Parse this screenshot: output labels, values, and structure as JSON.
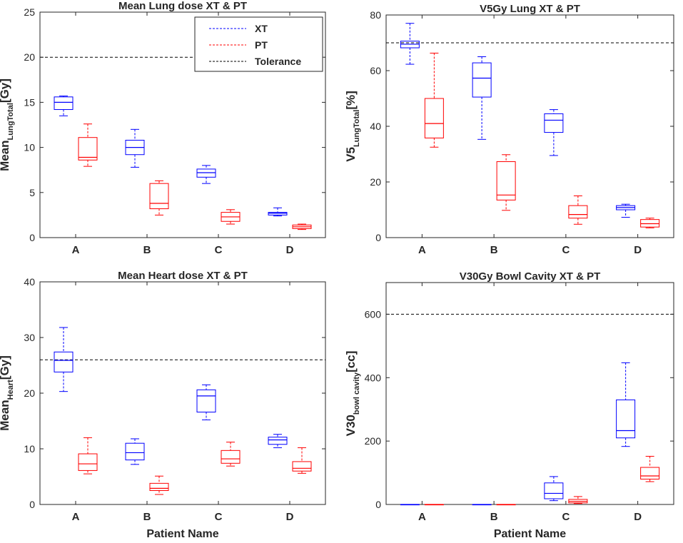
{
  "figure": {
    "xlabel": "Patient Name",
    "legend": {
      "placement": "top-right of first panel",
      "entries": [
        "XT",
        "PT",
        "Tolerance"
      ]
    }
  },
  "colors": {
    "XT": "#0000ff",
    "PT": "#ff0000",
    "Tolerance": "#000000"
  },
  "chart_data": [
    {
      "type": "box",
      "title": "Mean Lung dose XT & PT",
      "ylabel_main": "Mean",
      "ylabel_sub": "LungTotal",
      "ylabel_unit": "[Gy]",
      "xlabel": "",
      "categories": [
        "A",
        "B",
        "C",
        "D"
      ],
      "ylim": [
        0,
        25
      ],
      "yticks": [
        0,
        5,
        10,
        15,
        20,
        25
      ],
      "tolerance": 20,
      "series": [
        {
          "name": "XT",
          "boxes": [
            {
              "min": 13.5,
              "q1": 14.2,
              "median": 15.0,
              "q3": 15.6,
              "max": 15.7
            },
            {
              "min": 7.8,
              "q1": 9.2,
              "median": 10.0,
              "q3": 10.8,
              "max": 12.0
            },
            {
              "min": 6.0,
              "q1": 6.7,
              "median": 7.2,
              "q3": 7.6,
              "max": 8.0
            },
            {
              "min": 2.4,
              "q1": 2.5,
              "median": 2.7,
              "q3": 2.8,
              "max": 3.3
            }
          ]
        },
        {
          "name": "PT",
          "boxes": [
            {
              "min": 7.9,
              "q1": 8.6,
              "median": 8.9,
              "q3": 11.1,
              "max": 12.6
            },
            {
              "min": 2.5,
              "q1": 3.2,
              "median": 3.8,
              "q3": 6.0,
              "max": 6.3
            },
            {
              "min": 1.5,
              "q1": 1.8,
              "median": 2.3,
              "q3": 2.8,
              "max": 3.1
            },
            {
              "min": 0.9,
              "q1": 1.0,
              "median": 1.2,
              "q3": 1.4,
              "max": 1.5
            }
          ]
        }
      ]
    },
    {
      "type": "box",
      "title": "V5Gy Lung XT & PT",
      "ylabel_main": "V5",
      "ylabel_sub": "LungTotal",
      "ylabel_unit": "[%]",
      "xlabel": "",
      "categories": [
        "A",
        "B",
        "C",
        "D"
      ],
      "ylim": [
        0,
        80
      ],
      "yticks": [
        0,
        20,
        40,
        60,
        80
      ],
      "tolerance": 70,
      "series": [
        {
          "name": "XT",
          "boxes": [
            {
              "min": 62.3,
              "q1": 68.2,
              "median": 69.5,
              "q3": 70.6,
              "max": 77.0
            },
            {
              "min": 35.3,
              "q1": 50.5,
              "median": 57.3,
              "q3": 62.8,
              "max": 65.0
            },
            {
              "min": 29.5,
              "q1": 37.8,
              "median": 42.2,
              "q3": 44.5,
              "max": 46.0
            },
            {
              "min": 7.3,
              "q1": 10.0,
              "median": 10.8,
              "q3": 11.5,
              "max": 12.0
            }
          ]
        },
        {
          "name": "PT",
          "boxes": [
            {
              "min": 32.5,
              "q1": 35.8,
              "median": 41.0,
              "q3": 50.0,
              "max": 66.3
            },
            {
              "min": 9.8,
              "q1": 13.5,
              "median": 15.3,
              "q3": 27.3,
              "max": 29.8
            },
            {
              "min": 4.8,
              "q1": 7.0,
              "median": 8.3,
              "q3": 11.5,
              "max": 15.0
            },
            {
              "min": 3.5,
              "q1": 3.8,
              "median": 5.0,
              "q3": 6.5,
              "max": 7.0
            }
          ]
        }
      ]
    },
    {
      "type": "box",
      "title": "Mean Heart dose XT & PT",
      "ylabel_main": "Mean",
      "ylabel_sub": "Heart",
      "ylabel_unit": "[Gy]",
      "xlabel": "Patient Name",
      "categories": [
        "A",
        "B",
        "C",
        "D"
      ],
      "ylim": [
        0,
        40
      ],
      "yticks": [
        0,
        10,
        20,
        30,
        40
      ],
      "tolerance": 26,
      "series": [
        {
          "name": "XT",
          "boxes": [
            {
              "min": 20.3,
              "q1": 23.8,
              "median": 25.9,
              "q3": 27.4,
              "max": 31.8
            },
            {
              "min": 7.2,
              "q1": 8.0,
              "median": 9.3,
              "q3": 11.0,
              "max": 11.8
            },
            {
              "min": 15.2,
              "q1": 16.6,
              "median": 19.5,
              "q3": 20.6,
              "max": 21.5
            },
            {
              "min": 10.2,
              "q1": 10.8,
              "median": 11.6,
              "q3": 12.1,
              "max": 12.6
            }
          ]
        },
        {
          "name": "PT",
          "boxes": [
            {
              "min": 5.5,
              "q1": 6.1,
              "median": 7.3,
              "q3": 9.1,
              "max": 12.0
            },
            {
              "min": 1.8,
              "q1": 2.5,
              "median": 2.9,
              "q3": 3.8,
              "max": 5.1
            },
            {
              "min": 6.9,
              "q1": 7.4,
              "median": 8.2,
              "q3": 9.7,
              "max": 11.2
            },
            {
              "min": 5.6,
              "q1": 6.0,
              "median": 6.5,
              "q3": 7.7,
              "max": 10.2
            }
          ]
        }
      ]
    },
    {
      "type": "box",
      "title": "V30Gy Bowl Cavity XT & PT",
      "ylabel_main": "V30",
      "ylabel_sub": "bowl cavity",
      "ylabel_unit": "[cc]",
      "xlabel": "Patient Name",
      "categories": [
        "A",
        "B",
        "C",
        "D"
      ],
      "ylim": [
        0,
        700
      ],
      "yticks": [
        0,
        200,
        400,
        600
      ],
      "tolerance": 600,
      "series": [
        {
          "name": "XT",
          "boxes": [
            {
              "min": 0,
              "q1": 0,
              "median": 0,
              "q3": 0,
              "max": 0
            },
            {
              "min": 0,
              "q1": 0,
              "median": 0,
              "q3": 0,
              "max": 0
            },
            {
              "min": 12,
              "q1": 18,
              "median": 35,
              "q3": 68,
              "max": 88
            },
            {
              "min": 183,
              "q1": 210,
              "median": 233,
              "q3": 330,
              "max": 447
            }
          ]
        },
        {
          "name": "PT",
          "boxes": [
            {
              "min": 0,
              "q1": 0,
              "median": 0,
              "q3": 0,
              "max": 0
            },
            {
              "min": 0,
              "q1": 0,
              "median": 0,
              "q3": 0,
              "max": 0
            },
            {
              "min": 3,
              "q1": 5,
              "median": 10,
              "q3": 16,
              "max": 25
            },
            {
              "min": 72,
              "q1": 80,
              "median": 90,
              "q3": 117,
              "max": 152
            }
          ]
        }
      ]
    }
  ]
}
